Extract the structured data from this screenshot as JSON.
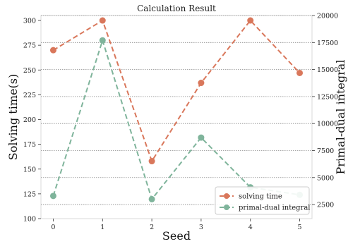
{
  "chart_data": {
    "type": "line",
    "title": "Calculation Result",
    "xlabel": "Seed",
    "ylabel_left": "Solving time(s)",
    "ylabel_right": "Primal-dual integral",
    "x": [
      0,
      1,
      2,
      3,
      4,
      5
    ],
    "x_tick_labels": [
      "0",
      "1",
      "2",
      "3",
      "4",
      "5"
    ],
    "y_left_ticks": [
      "100",
      "125",
      "150",
      "175",
      "200",
      "225",
      "250",
      "275",
      "300"
    ],
    "y_right_ticks": [
      "2500",
      "5000",
      "7500",
      "10000",
      "12500",
      "15000",
      "17500",
      "20000"
    ],
    "xlim": [
      -0.25,
      5.25
    ],
    "ylim_left": [
      100,
      305
    ],
    "ylim_right": [
      1200,
      20000
    ],
    "grid": "horizontal dotted (right axis)",
    "legend_position": "lower-right",
    "series": [
      {
        "name": "solving time",
        "axis": "left",
        "color": "#d9775b",
        "style": "dashed",
        "marker": "circle",
        "values": [
          270,
          300,
          158,
          237,
          300,
          247
        ]
      },
      {
        "name": "primal-dual integral",
        "axis": "right",
        "color": "#7fb49b",
        "style": "dashed",
        "marker": "circle",
        "values": [
          3300,
          17700,
          3000,
          8700,
          4100,
          3400
        ]
      }
    ]
  }
}
